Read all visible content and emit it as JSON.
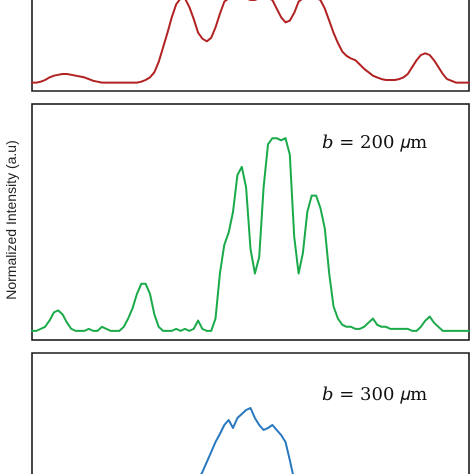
{
  "chart_data": [
    {
      "type": "line",
      "ylabel": "Normalized Intensity (a.u)",
      "annotation": "",
      "color": "#b22222",
      "x": [
        0,
        1,
        2,
        3,
        4,
        5,
        6,
        7,
        8,
        9,
        10,
        11,
        12,
        13,
        14,
        15,
        16,
        17,
        18,
        19,
        20,
        21,
        22,
        23,
        24,
        25,
        26,
        27,
        28,
        29,
        30,
        31,
        32,
        33,
        34,
        35,
        36,
        37,
        38,
        39,
        40,
        41,
        42,
        43,
        44,
        45,
        46,
        47,
        48,
        49,
        50,
        51,
        52,
        53,
        54,
        55,
        56,
        57,
        58,
        59,
        60,
        61,
        62,
        63,
        64,
        65,
        66,
        67,
        68,
        69,
        70,
        71,
        72,
        73,
        74,
        75,
        76,
        77,
        78,
        79,
        80,
        81,
        82,
        83,
        84,
        85,
        86,
        87,
        88,
        89,
        90,
        91,
        92,
        93,
        94,
        95,
        96,
        97,
        98,
        99,
        100
      ],
      "y": [
        0.04,
        0.04,
        0.05,
        0.07,
        0.1,
        0.12,
        0.13,
        0.14,
        0.14,
        0.13,
        0.12,
        0.11,
        0.1,
        0.08,
        0.06,
        0.05,
        0.04,
        0.04,
        0.04,
        0.04,
        0.04,
        0.04,
        0.04,
        0.04,
        0.04,
        0.05,
        0.07,
        0.1,
        0.16,
        0.28,
        0.45,
        0.62,
        0.8,
        0.95,
        1.02,
        1.02,
        0.92,
        0.78,
        0.62,
        0.55,
        0.52,
        0.56,
        0.68,
        0.84,
        0.98,
        1.02,
        1.02,
        1.02,
        1.02,
        1.02,
        1.0,
        1.0,
        1.02,
        1.02,
        1.02,
        1.0,
        0.9,
        0.8,
        0.74,
        0.76,
        0.85,
        0.98,
        1.02,
        1.02,
        1.02,
        1.02,
        1.0,
        0.9,
        0.76,
        0.62,
        0.5,
        0.4,
        0.35,
        0.32,
        0.3,
        0.25,
        0.2,
        0.16,
        0.12,
        0.1,
        0.08,
        0.07,
        0.07,
        0.07,
        0.08,
        0.1,
        0.14,
        0.22,
        0.3,
        0.36,
        0.38,
        0.36,
        0.3,
        0.22,
        0.14,
        0.08,
        0.06,
        0.04,
        0.04,
        0.04,
        0.04
      ],
      "ylim": [
        0,
        1
      ],
      "xlim": [
        0,
        100
      ]
    },
    {
      "type": "line",
      "ylabel": "",
      "annotation": "𝑏 = 200 𝜇m",
      "color": "#1aaa4a",
      "x": [
        0,
        1,
        2,
        3,
        4,
        5,
        6,
        7,
        8,
        9,
        10,
        11,
        12,
        13,
        14,
        15,
        16,
        17,
        18,
        19,
        20,
        21,
        22,
        23,
        24,
        25,
        26,
        27,
        28,
        29,
        30,
        31,
        32,
        33,
        34,
        35,
        36,
        37,
        38,
        39,
        40,
        41,
        42,
        43,
        44,
        45,
        46,
        47,
        48,
        49,
        50,
        51,
        52,
        53,
        54,
        55,
        56,
        57,
        58,
        59,
        60,
        61,
        62,
        63,
        64,
        65,
        66,
        67,
        68,
        69,
        70,
        71,
        72,
        73,
        74,
        75,
        76,
        77,
        78,
        79,
        80,
        81,
        82,
        83,
        84,
        85,
        86,
        87,
        88,
        89,
        90,
        91,
        92,
        93,
        94,
        95,
        96,
        97,
        98,
        99,
        100
      ],
      "y": [
        0.02,
        0.02,
        0.03,
        0.04,
        0.07,
        0.11,
        0.12,
        0.1,
        0.06,
        0.03,
        0.02,
        0.02,
        0.02,
        0.03,
        0.02,
        0.02,
        0.04,
        0.03,
        0.02,
        0.02,
        0.02,
        0.04,
        0.08,
        0.13,
        0.2,
        0.25,
        0.25,
        0.2,
        0.1,
        0.04,
        0.02,
        0.02,
        0.02,
        0.03,
        0.02,
        0.03,
        0.02,
        0.03,
        0.07,
        0.03,
        0.02,
        0.02,
        0.08,
        0.3,
        0.44,
        0.5,
        0.6,
        0.78,
        0.82,
        0.72,
        0.42,
        0.3,
        0.38,
        0.72,
        0.93,
        0.96,
        0.96,
        0.95,
        0.96,
        0.88,
        0.48,
        0.3,
        0.4,
        0.6,
        0.68,
        0.68,
        0.62,
        0.52,
        0.3,
        0.14,
        0.08,
        0.05,
        0.04,
        0.04,
        0.03,
        0.03,
        0.04,
        0.06,
        0.08,
        0.05,
        0.04,
        0.04,
        0.03,
        0.03,
        0.03,
        0.03,
        0.03,
        0.02,
        0.02,
        0.04,
        0.07,
        0.09,
        0.06,
        0.04,
        0.02,
        0.02,
        0.02,
        0.02,
        0.02,
        0.02,
        0.02
      ],
      "ylim": [
        0,
        1
      ],
      "xlim": [
        0,
        100
      ]
    },
    {
      "type": "line",
      "ylabel": "",
      "annotation": "𝑏 = 300 𝜇m",
      "color": "#2878c0",
      "x": [
        38,
        39,
        40,
        41,
        42,
        43,
        44,
        45,
        46,
        47,
        48,
        49,
        50,
        51,
        52,
        53,
        54,
        55,
        56,
        57,
        58,
        59,
        60
      ],
      "y": [
        0.0,
        0.08,
        0.18,
        0.28,
        0.38,
        0.46,
        0.55,
        0.6,
        0.52,
        0.62,
        0.66,
        0.7,
        0.72,
        0.62,
        0.55,
        0.5,
        0.52,
        0.55,
        0.5,
        0.45,
        0.38,
        0.2,
        0.0
      ],
      "ylim": [
        0,
        1
      ],
      "xlim": [
        0,
        100
      ]
    }
  ]
}
